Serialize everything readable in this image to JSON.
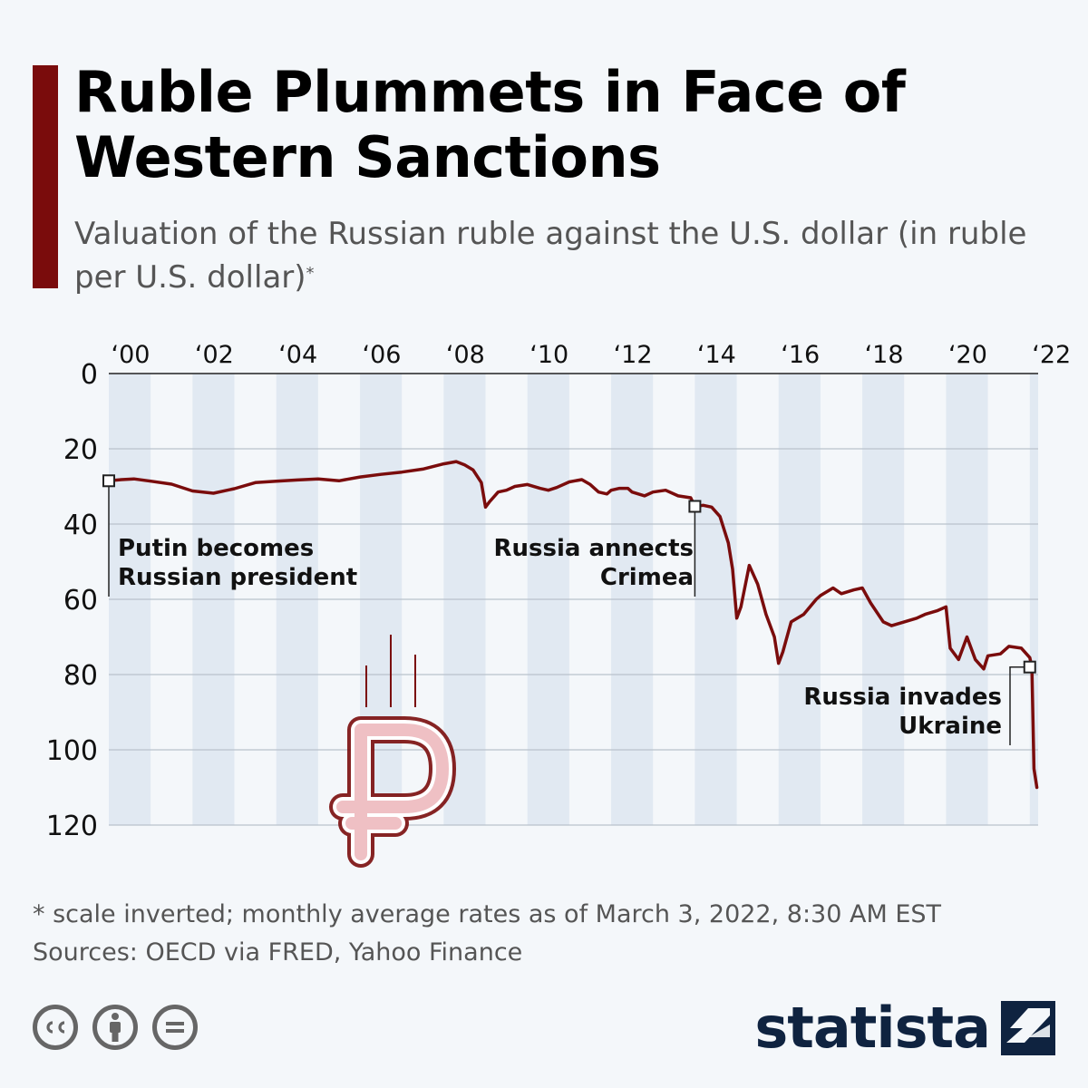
{
  "header": {
    "title": "Ruble Plummets in Face of Western Sanctions",
    "subtitle": "Valuation of the Russian ruble against the U.S. dollar (in ruble per U.S. dollar)",
    "subtitle_mark": "*"
  },
  "footer": {
    "note": "* scale inverted; monthly average rates as of March 3, 2022, 8:30 AM EST",
    "sources": "Sources: OECD via FRED, Yahoo Finance",
    "brand": "statista"
  },
  "colors": {
    "accent": "#7a0c0c",
    "line": "#7a0c0c",
    "band": "#e1e9f2",
    "brand": "#0f2340"
  },
  "icons": [
    "cc-icon",
    "attribution-icon",
    "no-derivatives-icon",
    "ruble-icon",
    "statista-logo-icon"
  ],
  "chart_data": {
    "type": "line",
    "title": "Ruble Plummets in Face of Western Sanctions",
    "ylabel": "ruble per U.S. dollar",
    "xlabel": "",
    "y_inverted": true,
    "ylim": [
      0,
      120
    ],
    "yticks": [
      0,
      20,
      40,
      60,
      80,
      100,
      120
    ],
    "xlim": [
      2000.0,
      2022.2
    ],
    "xticks": [
      {
        "value": 2000,
        "label": "‘00"
      },
      {
        "value": 2002,
        "label": "‘02"
      },
      {
        "value": 2004,
        "label": "‘04"
      },
      {
        "value": 2006,
        "label": "‘06"
      },
      {
        "value": 2008,
        "label": "‘08"
      },
      {
        "value": 2010,
        "label": "‘10"
      },
      {
        "value": 2012,
        "label": "‘12"
      },
      {
        "value": 2014,
        "label": "‘14"
      },
      {
        "value": 2016,
        "label": "‘16"
      },
      {
        "value": 2018,
        "label": "‘18"
      },
      {
        "value": 2020,
        "label": "‘20"
      },
      {
        "value": 2022,
        "label": "‘22"
      }
    ],
    "series": [
      {
        "name": "RUB per USD",
        "x": [
          2000.0,
          2000.3,
          2000.6,
          2001.0,
          2001.5,
          2002.0,
          2002.5,
          2003.0,
          2003.5,
          2004.0,
          2004.5,
          2005.0,
          2005.5,
          2006.0,
          2006.5,
          2007.0,
          2007.5,
          2008.0,
          2008.3,
          2008.5,
          2008.7,
          2008.9,
          2009.0,
          2009.1,
          2009.3,
          2009.5,
          2009.7,
          2010.0,
          2010.3,
          2010.5,
          2010.7,
          2011.0,
          2011.3,
          2011.5,
          2011.7,
          2011.9,
          2012.0,
          2012.2,
          2012.4,
          2012.5,
          2012.8,
          2013.0,
          2013.3,
          2013.6,
          2013.9,
          2014.0,
          2014.2,
          2014.4,
          2014.6,
          2014.8,
          2014.9,
          2015.0,
          2015.1,
          2015.3,
          2015.5,
          2015.7,
          2015.9,
          2016.0,
          2016.1,
          2016.3,
          2016.6,
          2016.9,
          2017.0,
          2017.3,
          2017.5,
          2017.8,
          2018.0,
          2018.2,
          2018.5,
          2018.7,
          2019.0,
          2019.3,
          2019.5,
          2019.8,
          2020.0,
          2020.1,
          2020.3,
          2020.5,
          2020.7,
          2020.9,
          2021.0,
          2021.3,
          2021.5,
          2021.8,
          2022.0,
          2022.05,
          2022.1,
          2022.17
        ],
        "y": [
          28.5,
          28.2,
          28.0,
          28.6,
          29.4,
          31.2,
          31.8,
          30.6,
          29.0,
          28.6,
          28.3,
          28.0,
          28.5,
          27.5,
          26.8,
          26.2,
          25.4,
          24.0,
          23.4,
          24.3,
          25.6,
          29.0,
          35.5,
          34.0,
          31.5,
          31.0,
          30.0,
          29.5,
          30.5,
          31.0,
          30.3,
          28.8,
          28.2,
          29.5,
          31.5,
          32.0,
          31.0,
          30.5,
          30.5,
          31.5,
          32.5,
          31.5,
          31.0,
          32.5,
          33.0,
          35.3,
          35.0,
          35.5,
          38.0,
          45.0,
          52.0,
          65.0,
          62.0,
          51.0,
          56.0,
          64.0,
          70.0,
          77.0,
          74.0,
          66.0,
          64.0,
          60.0,
          59.0,
          57.0,
          58.5,
          57.5,
          57.0,
          61.0,
          66.0,
          67.0,
          66.0,
          65.0,
          64.0,
          63.0,
          62.0,
          73.0,
          76.0,
          70.0,
          76.0,
          78.5,
          75.0,
          74.5,
          72.5,
          73.0,
          75.5,
          78.0,
          105.0,
          110.0
        ]
      }
    ],
    "annotations": [
      {
        "id": "putin",
        "x": 2000.0,
        "y": 28.5,
        "lines": [
          "Putin becomes",
          "Russian president"
        ],
        "align": "left"
      },
      {
        "id": "crimea",
        "x": 2014.0,
        "y": 35.3,
        "lines": [
          "Russia annects",
          "Crimea"
        ],
        "align": "right"
      },
      {
        "id": "ukraine",
        "x": 2022.0,
        "y": 78.0,
        "lines": [
          "Russia invades",
          "Ukraine"
        ],
        "align": "right"
      }
    ]
  }
}
